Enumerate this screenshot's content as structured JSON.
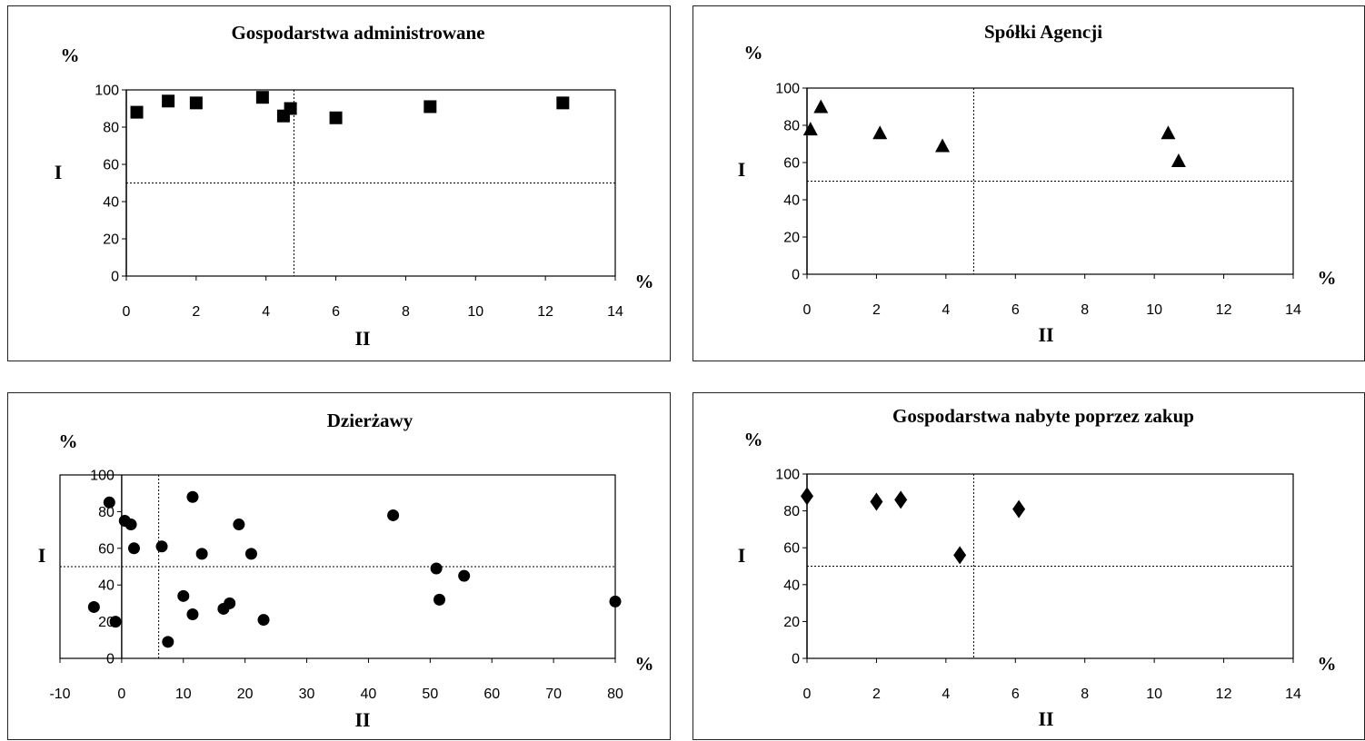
{
  "chart_data": [
    {
      "type": "scatter",
      "title": "Gospodarstwa administrowane",
      "ylabel": "I",
      "xlabel": "II",
      "y_unit": "%",
      "x_unit": "%",
      "marker": "square",
      "xlim": [
        0,
        14
      ],
      "ylim": [
        0,
        100
      ],
      "xticks": [
        "0",
        "2",
        "4",
        "6",
        "8",
        "10",
        "12",
        "14"
      ],
      "yticks": [
        "0",
        "20",
        "40",
        "60",
        "80",
        "100"
      ],
      "threshold_x": 4.8,
      "threshold_y": 50,
      "points": [
        {
          "x": 0.3,
          "y": 88
        },
        {
          "x": 1.2,
          "y": 94
        },
        {
          "x": 2.0,
          "y": 93
        },
        {
          "x": 3.9,
          "y": 96
        },
        {
          "x": 4.5,
          "y": 86
        },
        {
          "x": 4.7,
          "y": 90
        },
        {
          "x": 6.0,
          "y": 85
        },
        {
          "x": 8.7,
          "y": 91
        },
        {
          "x": 12.5,
          "y": 93
        }
      ]
    },
    {
      "type": "scatter",
      "title": "Spółki Agencji",
      "ylabel": "I",
      "xlabel": "II",
      "y_unit": "%",
      "x_unit": "%",
      "marker": "triangle",
      "xlim": [
        0,
        14
      ],
      "ylim": [
        0,
        100
      ],
      "xticks": [
        "0",
        "2",
        "4",
        "6",
        "8",
        "10",
        "12",
        "14"
      ],
      "yticks": [
        "0",
        "20",
        "40",
        "60",
        "80",
        "100"
      ],
      "threshold_x": 4.8,
      "threshold_y": 50,
      "points": [
        {
          "x": 0.1,
          "y": 78
        },
        {
          "x": 0.4,
          "y": 90
        },
        {
          "x": 2.1,
          "y": 76
        },
        {
          "x": 3.9,
          "y": 69
        },
        {
          "x": 10.4,
          "y": 76
        },
        {
          "x": 10.7,
          "y": 61
        }
      ]
    },
    {
      "type": "scatter",
      "title": "Dzierżawy",
      "ylabel": "I",
      "xlabel": "II",
      "y_unit": "%",
      "x_unit": "%",
      "marker": "circle",
      "xlim": [
        -10,
        80
      ],
      "ylim": [
        0,
        100
      ],
      "xticks": [
        "-10",
        "0",
        "10",
        "20",
        "30",
        "40",
        "50",
        "60",
        "70",
        "80"
      ],
      "yticks": [
        "0",
        "20",
        "40",
        "60",
        "80",
        "100"
      ],
      "threshold_x": 6,
      "threshold_y": 50,
      "points": [
        {
          "x": -2,
          "y": 85
        },
        {
          "x": 0.5,
          "y": 75
        },
        {
          "x": 1.5,
          "y": 73
        },
        {
          "x": 2,
          "y": 60
        },
        {
          "x": -4.5,
          "y": 28
        },
        {
          "x": -1,
          "y": 20
        },
        {
          "x": 6.5,
          "y": 61
        },
        {
          "x": 11.5,
          "y": 88
        },
        {
          "x": 13,
          "y": 57
        },
        {
          "x": 10,
          "y": 34
        },
        {
          "x": 11.5,
          "y": 24
        },
        {
          "x": 7.5,
          "y": 9
        },
        {
          "x": 16.5,
          "y": 27
        },
        {
          "x": 17.5,
          "y": 30
        },
        {
          "x": 19,
          "y": 73
        },
        {
          "x": 21,
          "y": 57
        },
        {
          "x": 23,
          "y": 21
        },
        {
          "x": 44,
          "y": 78
        },
        {
          "x": 51,
          "y": 49
        },
        {
          "x": 51.5,
          "y": 32
        },
        {
          "x": 55.5,
          "y": 45
        },
        {
          "x": 80,
          "y": 31
        }
      ]
    },
    {
      "type": "scatter",
      "title": "Gospodarstwa nabyte poprzez zakup",
      "ylabel": "I",
      "xlabel": "II",
      "y_unit": "%",
      "x_unit": "%",
      "marker": "diamond",
      "xlim": [
        0,
        14
      ],
      "ylim": [
        0,
        100
      ],
      "xticks": [
        "0",
        "2",
        "4",
        "6",
        "8",
        "10",
        "12",
        "14"
      ],
      "yticks": [
        "0",
        "20",
        "40",
        "60",
        "80",
        "100"
      ],
      "threshold_x": 4.8,
      "threshold_y": 50,
      "points": [
        {
          "x": 0.0,
          "y": 88
        },
        {
          "x": 2.0,
          "y": 85
        },
        {
          "x": 2.7,
          "y": 86
        },
        {
          "x": 4.4,
          "y": 56
        },
        {
          "x": 6.1,
          "y": 81
        }
      ]
    }
  ]
}
